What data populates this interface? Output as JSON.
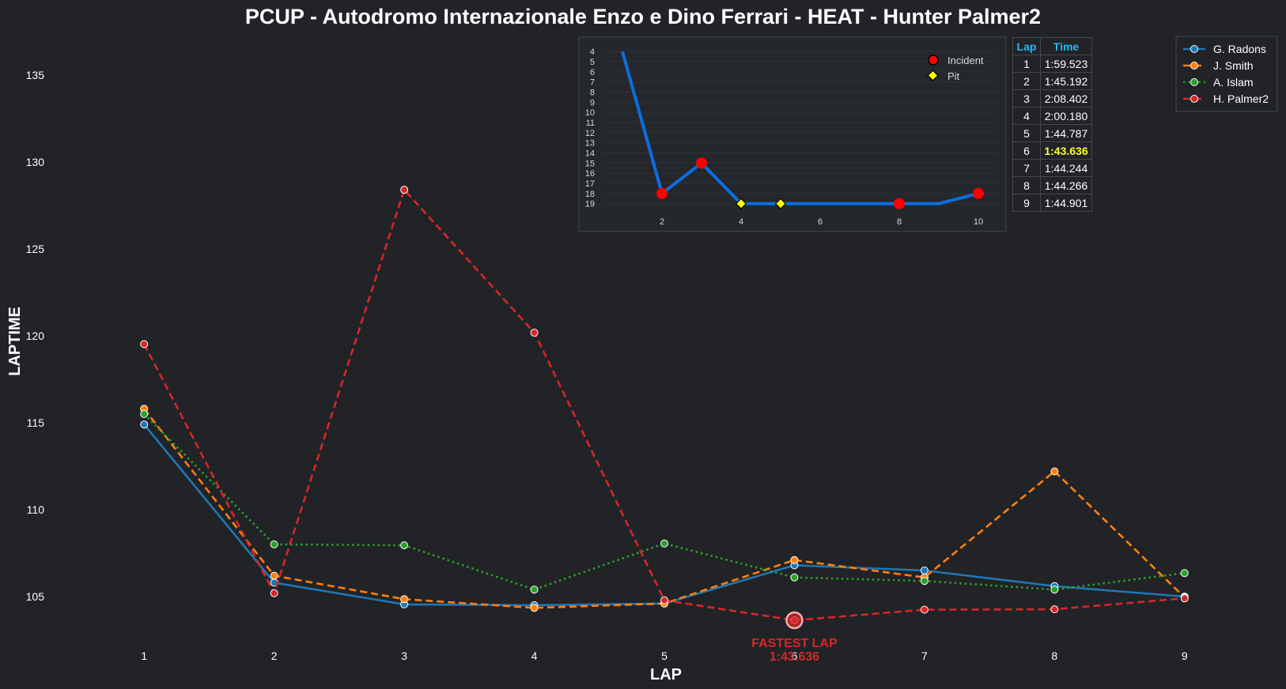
{
  "chart_data": [
    {
      "type": "line",
      "title": "PCUP - Autodromo Internazionale Enzo e Dino Ferrari - HEAT - Hunter Palmer2",
      "xlabel": "LAP",
      "ylabel": "LAPTIME",
      "x": [
        1,
        2,
        3,
        4,
        5,
        6,
        7,
        8,
        9
      ],
      "xlim": [
        0.5,
        9.5
      ],
      "ylim": [
        102.5,
        137.5
      ],
      "yticks": [
        105,
        110,
        115,
        120,
        125,
        130,
        135
      ],
      "grid": false,
      "legend_position": "top-right",
      "series": [
        {
          "name": "G. Radons",
          "color": "#1f77b4",
          "dash": "solid",
          "values": [
            114.9,
            105.8,
            104.55,
            104.5,
            104.6,
            106.8,
            106.5,
            105.6,
            105.0
          ]
        },
        {
          "name": "J. Smith",
          "color": "#ff7f0e",
          "dash": "dashed",
          "values": [
            115.8,
            106.2,
            104.85,
            104.35,
            104.6,
            107.1,
            106.1,
            112.2,
            104.95
          ]
        },
        {
          "name": "A. Islam",
          "color": "#2ca02c",
          "dash": "dotted",
          "values": [
            115.5,
            108.0,
            107.95,
            105.4,
            108.05,
            106.1,
            105.9,
            105.4,
            106.35
          ]
        },
        {
          "name": "H. Palmer2",
          "color": "#d62728",
          "dash": "dashed",
          "values": [
            119.523,
            105.192,
            128.402,
            120.18,
            104.787,
            103.636,
            104.244,
            104.266,
            104.901
          ]
        }
      ],
      "annotation": {
        "x": 6,
        "y": 103.636,
        "line1": "FASTEST LAP",
        "line2": "1:43.636"
      }
    },
    {
      "type": "line",
      "title": "",
      "x": [
        1,
        2,
        3,
        4,
        5,
        6,
        7,
        8,
        9,
        10
      ],
      "values": [
        4,
        18,
        15,
        19,
        19,
        19,
        19,
        19,
        19,
        18
      ],
      "xlim": [
        0.5,
        10.5
      ],
      "ylim": [
        19.8,
        3.6
      ],
      "xticks": [
        2,
        4,
        6,
        8,
        10
      ],
      "yticks": [
        4,
        5,
        6,
        7,
        8,
        9,
        10,
        11,
        12,
        13,
        14,
        15,
        16,
        17,
        18,
        19
      ],
      "y_inverted": true,
      "line_color": "#0a6fe0",
      "incidents": [
        2,
        3,
        8,
        10
      ],
      "pits": [
        4,
        5
      ],
      "legend": [
        {
          "label": "Incident",
          "marker": "circle",
          "color": "#ff0000"
        },
        {
          "label": "Pit",
          "marker": "diamond",
          "color": "#ffff00"
        }
      ],
      "legend_position": "top-right"
    },
    {
      "type": "table",
      "columns": [
        "Lap",
        "Time"
      ],
      "rows": [
        [
          "1",
          "1:59.523"
        ],
        [
          "2",
          "1:45.192"
        ],
        [
          "3",
          "2:08.402"
        ],
        [
          "4",
          "2:00.180"
        ],
        [
          "5",
          "1:44.787"
        ],
        [
          "6",
          "1:43.636"
        ],
        [
          "7",
          "1:44.244"
        ],
        [
          "8",
          "1:44.266"
        ],
        [
          "9",
          "1:44.901"
        ]
      ],
      "highlight_row": 5,
      "highlight_color": "#ffff33"
    }
  ]
}
